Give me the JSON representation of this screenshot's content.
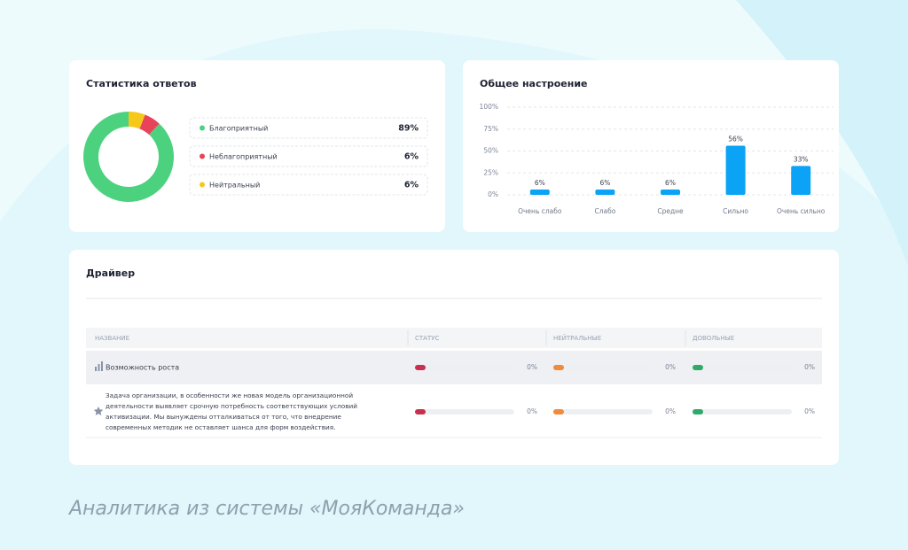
{
  "chart_data": [
    {
      "type": "donut",
      "title": "Статистика ответов",
      "categories": [
        "Благоприятный",
        "Неблагоприятный",
        "Нейтральный"
      ],
      "values": [
        89,
        6,
        6
      ],
      "value_labels": [
        "89%",
        "6%",
        "6%"
      ],
      "colors": [
        "#4cd27e",
        "#e8435a",
        "#f6c81a"
      ]
    },
    {
      "type": "bar",
      "title": "Общее настроение",
      "categories": [
        "Очень слабо",
        "Слабо",
        "Средне",
        "Сильно",
        "Очень сильно"
      ],
      "values": [
        6,
        6,
        6,
        56,
        33
      ],
      "value_labels": [
        "6%",
        "6%",
        "6%",
        "56%",
        "33%"
      ],
      "color": "#0aa3f5",
      "ylim": [
        0,
        100
      ],
      "yticks": [
        {
          "value": 0,
          "label": "0%"
        },
        {
          "value": 25,
          "label": "25%"
        },
        {
          "value": 50,
          "label": "50%"
        },
        {
          "value": 75,
          "label": "75%"
        },
        {
          "value": 100,
          "label": "100%"
        }
      ],
      "grid": true
    }
  ],
  "driver": {
    "title": "Драйвер",
    "headers": [
      "НАЗВАНИЕ",
      "СТАТУС",
      "НЕЙТРАЛЬНЫЕ",
      "ДОВОЛЬНЫЕ"
    ],
    "rows": [
      {
        "name_lines": [
          "Возможность роста"
        ],
        "values": [
          0,
          0,
          0
        ],
        "value_labels": [
          "0%",
          "0%",
          "0%"
        ]
      },
      {
        "name_lines": [
          "Задача организации, в особенности же новая модель организационной",
          "деятельности выявляет срочную потребность соответствующих условий",
          "активизации. Мы вынуждены отталкиваться от того, что внедрение",
          "современных методик не оставляет шанса для форм воздействия."
        ],
        "values": [
          0,
          0,
          0
        ],
        "value_labels": [
          "0%",
          "0%",
          "0%"
        ]
      }
    ],
    "colors": [
      "#c8304f",
      "#f08a3c",
      "#2fa86a"
    ]
  },
  "caption": "Аналитика из системы «МояКоманда»"
}
